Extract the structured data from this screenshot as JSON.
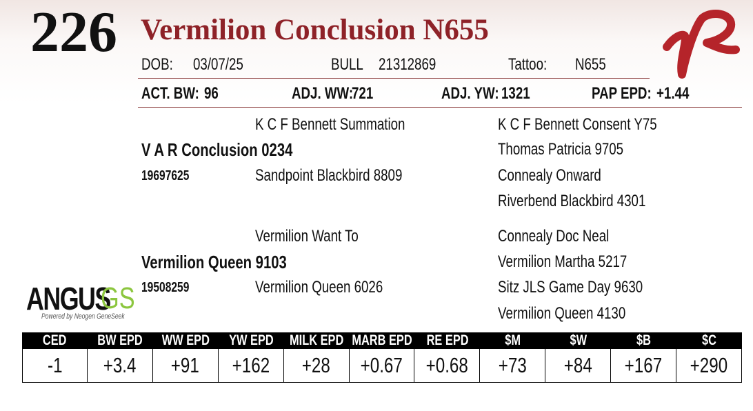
{
  "lot": "226",
  "name": "Vermilion Conclusion N655",
  "info": [
    {
      "label": "DOB:",
      "value": "03/07/25"
    },
    {
      "label": "BULL",
      "value": "21312869"
    },
    {
      "label": "Tattoo:",
      "value": "N655"
    }
  ],
  "weights": [
    {
      "label": "ACT. BW:",
      "value": "96"
    },
    {
      "label": "ADJ. WW:",
      "value": "721"
    },
    {
      "label": "ADJ. YW:",
      "value": "1321"
    },
    {
      "label": "PAP EPD:",
      "value": "+1.44"
    }
  ],
  "pedigree": {
    "sire": {
      "name": "V A R Conclusion 0234",
      "reg": "19697625",
      "parents": [
        "K C F Bennett Summation",
        "Sandpoint Blackbird 8809"
      ],
      "grandparents": [
        "K C F Bennett Consent Y75",
        "Thomas Patricia 9705",
        "Connealy Onward",
        "Riverbend Blackbird 4301"
      ]
    },
    "dam": {
      "name": "Vermilion Queen 9103",
      "reg": "19508259",
      "parents": [
        "Vermilion Want To",
        "Vermilion Queen 6026"
      ],
      "grandparents": [
        "Connealy Doc Neal",
        "Vermilion Martha 5217",
        "Sitz JLS Game Day 9630",
        "Vermilion Queen 4130"
      ]
    }
  },
  "logo": {
    "brand": "ANGUS",
    "suffix": "GS",
    "tagline": "Powered by Neogen GeneSeek"
  },
  "epd": {
    "headers": [
      "CED",
      "BW EPD",
      "WW EPD",
      "YW EPD",
      "MILK EPD",
      "MARB EPD",
      "RE EPD",
      "$M",
      "$W",
      "$B",
      "$C"
    ],
    "values": [
      "-1",
      "+3.4",
      "+91",
      "+162",
      "+28",
      "+0.67",
      "+0.68",
      "+73",
      "+84",
      "+167",
      "+290"
    ]
  }
}
